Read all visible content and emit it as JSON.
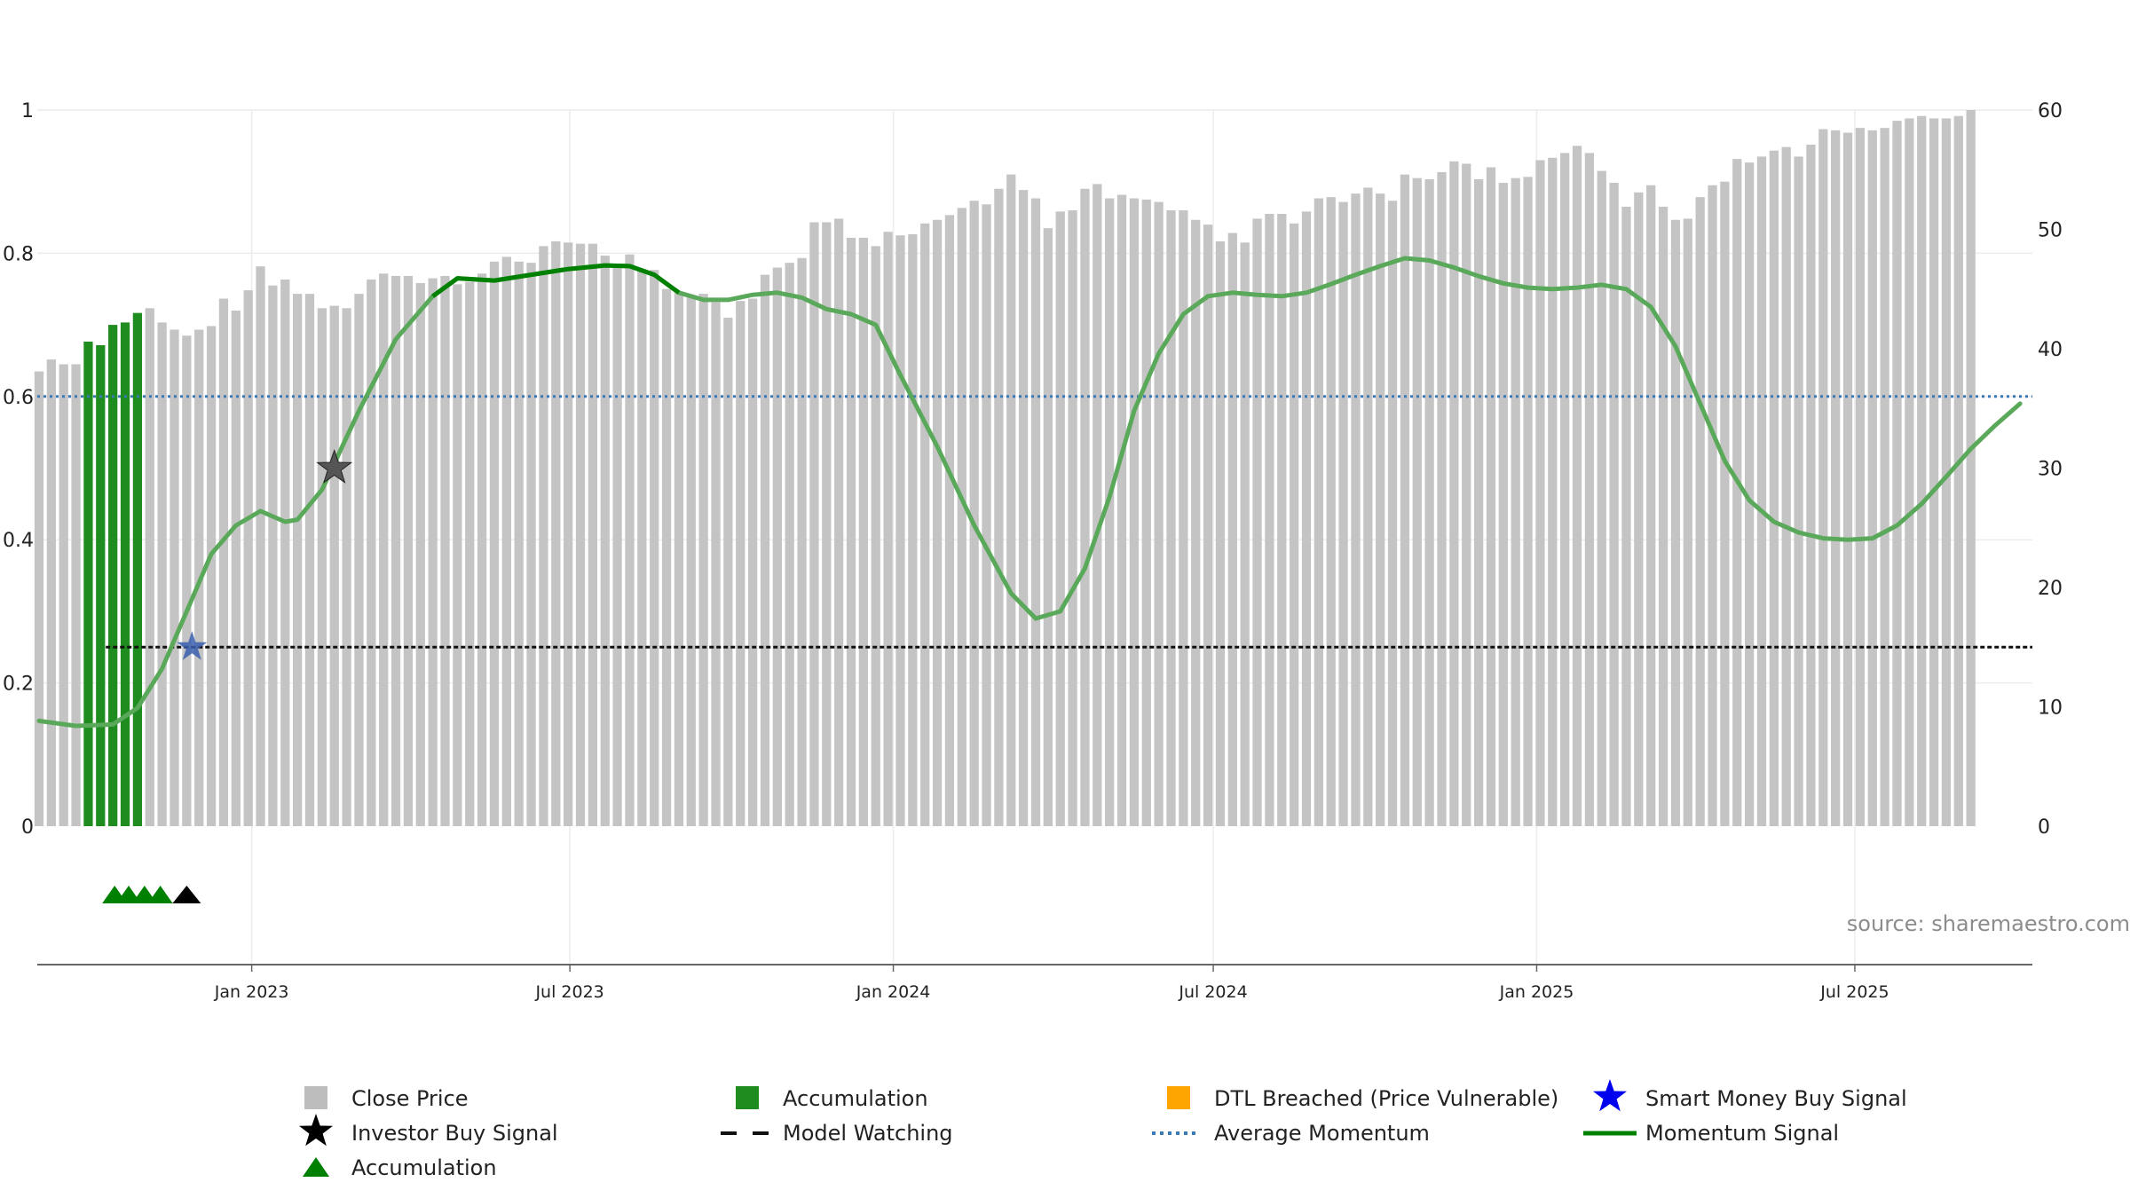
{
  "chart_data": {
    "type": "bar",
    "source_label": "source: sharemaestro.com",
    "left_axis": {
      "range": [
        0,
        1
      ],
      "ticks": [
        "0",
        "0.2",
        "0.4",
        "0.6",
        "0.8",
        "1"
      ],
      "tick_values": [
        0,
        0.2,
        0.4,
        0.6,
        0.8,
        1
      ]
    },
    "right_axis": {
      "range": [
        0,
        60
      ],
      "ticks": [
        "0",
        "10",
        "20",
        "30",
        "40",
        "50",
        "60"
      ],
      "tick_values": [
        0,
        10,
        20,
        30,
        40,
        50,
        60
      ]
    },
    "x_axis": {
      "start": "2022-09-01",
      "end": "2025-10-10",
      "ticks": [
        {
          "date": "2023-01-01",
          "label": "Jan 2023"
        },
        {
          "date": "2023-07-01",
          "label": "Jul 2023"
        },
        {
          "date": "2024-01-01",
          "label": "Jan 2024"
        },
        {
          "date": "2024-07-01",
          "label": "Jul 2024"
        },
        {
          "date": "2025-01-01",
          "label": "Jan 2025"
        },
        {
          "date": "2025-07-01",
          "label": "Jul 2025"
        }
      ]
    },
    "close_price": {
      "name": "Close Price",
      "first_date": "2022-09-02",
      "interval_days": 7,
      "accumulation_indices": [
        4,
        5,
        6,
        7,
        8
      ],
      "values": [
        38.1,
        39.1,
        38.7,
        38.7,
        40.6,
        40.3,
        42.0,
        42.2,
        43.0,
        43.4,
        42.2,
        41.6,
        41.1,
        41.6,
        41.9,
        44.2,
        43.2,
        44.9,
        46.9,
        45.3,
        45.8,
        44.6,
        44.6,
        43.4,
        43.6,
        43.4,
        44.6,
        45.8,
        46.3,
        46.1,
        46.1,
        45.5,
        45.9,
        46.1,
        45.4,
        45.6,
        46.3,
        47.3,
        47.7,
        47.3,
        47.2,
        48.6,
        49.0,
        48.9,
        48.8,
        48.8,
        47.8,
        46.8,
        47.9,
        46.6,
        46.6,
        45.0,
        44.7,
        44.3,
        44.6,
        43.9,
        42.6,
        44.0,
        44.2,
        46.2,
        46.8,
        47.2,
        47.6,
        50.6,
        50.6,
        50.9,
        49.3,
        49.3,
        48.6,
        49.8,
        49.5,
        49.6,
        50.5,
        50.8,
        51.2,
        51.8,
        52.4,
        52.1,
        53.4,
        54.6,
        53.3,
        52.6,
        50.1,
        51.5,
        51.6,
        53.4,
        53.8,
        52.6,
        52.9,
        52.6,
        52.5,
        52.3,
        51.6,
        51.6,
        50.8,
        50.4,
        49.0,
        49.7,
        48.9,
        50.9,
        51.3,
        51.3,
        50.5,
        51.5,
        52.6,
        52.7,
        52.3,
        53.0,
        53.5,
        53.0,
        52.4,
        54.6,
        54.3,
        54.2,
        54.8,
        55.7,
        55.5,
        54.2,
        55.2,
        53.9,
        54.3,
        54.4,
        55.8,
        56.0,
        56.4,
        57.0,
        56.4,
        54.9,
        53.9,
        51.9,
        53.1,
        53.7,
        51.9,
        50.8,
        50.9,
        52.7,
        53.7,
        54.0,
        55.9,
        55.6,
        56.1,
        56.6,
        56.9,
        56.1,
        57.1,
        58.4,
        58.3,
        58.1,
        58.5,
        58.3,
        58.5,
        59.1,
        59.3,
        59.5,
        59.3,
        59.3,
        59.5,
        60.0
      ]
    },
    "momentum_signal": {
      "name": "Momentum Signal",
      "color_solid": "#008000",
      "points": [
        [
          "2022-09-02",
          0.147
        ],
        [
          "2022-09-23",
          0.14
        ],
        [
          "2022-10-14",
          0.142
        ],
        [
          "2022-10-28",
          0.165
        ],
        [
          "2022-11-11",
          0.22
        ],
        [
          "2022-11-25",
          0.3
        ],
        [
          "2022-12-09",
          0.38
        ],
        [
          "2022-12-23",
          0.42
        ],
        [
          "2023-01-06",
          0.44
        ],
        [
          "2023-01-20",
          0.425
        ],
        [
          "2023-01-27",
          0.428
        ],
        [
          "2023-02-10",
          0.47
        ],
        [
          "2023-03-03",
          0.58
        ],
        [
          "2023-03-24",
          0.68
        ],
        [
          "2023-04-14",
          0.74
        ],
        [
          "2023-04-28",
          0.765
        ],
        [
          "2023-05-19",
          0.762
        ],
        [
          "2023-06-09",
          0.77
        ],
        [
          "2023-06-30",
          0.778
        ],
        [
          "2023-07-21",
          0.783
        ],
        [
          "2023-08-04",
          0.782
        ],
        [
          "2023-08-18",
          0.77
        ],
        [
          "2023-09-01",
          0.745
        ],
        [
          "2023-09-15",
          0.735
        ],
        [
          "2023-09-29",
          0.735
        ],
        [
          "2023-10-13",
          0.742
        ],
        [
          "2023-10-27",
          0.745
        ],
        [
          "2023-11-10",
          0.738
        ],
        [
          "2023-11-24",
          0.722
        ],
        [
          "2023-12-08",
          0.715
        ],
        [
          "2023-12-22",
          0.7
        ],
        [
          "2024-01-05",
          0.63
        ],
        [
          "2024-01-26",
          0.53
        ],
        [
          "2024-02-16",
          0.42
        ],
        [
          "2024-03-08",
          0.325
        ],
        [
          "2024-03-22",
          0.29
        ],
        [
          "2024-04-05",
          0.3
        ],
        [
          "2024-04-19",
          0.36
        ],
        [
          "2024-05-03",
          0.46
        ],
        [
          "2024-05-17",
          0.58
        ],
        [
          "2024-05-31",
          0.66
        ],
        [
          "2024-06-14",
          0.715
        ],
        [
          "2024-06-28",
          0.74
        ],
        [
          "2024-07-12",
          0.745
        ],
        [
          "2024-07-26",
          0.742
        ],
        [
          "2024-08-09",
          0.74
        ],
        [
          "2024-08-23",
          0.745
        ],
        [
          "2024-09-06",
          0.757
        ],
        [
          "2024-09-20",
          0.77
        ],
        [
          "2024-10-04",
          0.782
        ],
        [
          "2024-10-18",
          0.793
        ],
        [
          "2024-11-01",
          0.79
        ],
        [
          "2024-11-15",
          0.78
        ],
        [
          "2024-11-29",
          0.768
        ],
        [
          "2024-12-13",
          0.758
        ],
        [
          "2024-12-27",
          0.752
        ],
        [
          "2025-01-10",
          0.75
        ],
        [
          "2025-01-24",
          0.752
        ],
        [
          "2025-02-07",
          0.756
        ],
        [
          "2025-02-21",
          0.75
        ],
        [
          "2025-03-07",
          0.725
        ],
        [
          "2025-03-21",
          0.67
        ],
        [
          "2025-04-04",
          0.59
        ],
        [
          "2025-04-18",
          0.51
        ],
        [
          "2025-05-02",
          0.455
        ],
        [
          "2025-05-16",
          0.425
        ],
        [
          "2025-05-30",
          0.41
        ],
        [
          "2025-06-13",
          0.402
        ],
        [
          "2025-06-27",
          0.4
        ],
        [
          "2025-07-11",
          0.402
        ],
        [
          "2025-07-25",
          0.42
        ],
        [
          "2025-08-08",
          0.45
        ],
        [
          "2025-08-22",
          0.488
        ],
        [
          "2025-09-05",
          0.527
        ],
        [
          "2025-09-19",
          0.56
        ],
        [
          "2025-10-03",
          0.59
        ]
      ]
    },
    "model_watching": {
      "name": "Model Watching",
      "value": 0.25,
      "start": "2022-10-10",
      "end": "2025-10-10"
    },
    "average_momentum": {
      "name": "Average Momentum",
      "value": 0.6
    },
    "markers": {
      "investor_buy_signal": {
        "name": "Investor Buy Signal",
        "date": "2023-02-17",
        "value": 0.5
      },
      "smart_money_buy_signal": {
        "name": "Smart Money Buy Signal",
        "date": "2022-11-28",
        "value": 0.25
      },
      "accumulation_triangles": [
        "2022-10-15",
        "2022-10-23",
        "2022-11-01",
        "2022-11-10"
      ],
      "black_triangle": "2022-11-25"
    },
    "legend": [
      {
        "label": "Close Price",
        "symbol": "square-gray"
      },
      {
        "label": "Accumulation",
        "symbol": "square-green"
      },
      {
        "label": "DTL Breached (Price Vulnerable)",
        "symbol": "square-orange"
      },
      {
        "label": "Smart Money Buy Signal",
        "symbol": "star-blue"
      },
      {
        "label": "Investor Buy Signal",
        "symbol": "star-black"
      },
      {
        "label": "Model Watching",
        "symbol": "dash-black"
      },
      {
        "label": "Average Momentum",
        "symbol": "dot-blue"
      },
      {
        "label": "Momentum Signal",
        "symbol": "line-green"
      },
      {
        "label": "Accumulation",
        "symbol": "triangle-green"
      }
    ],
    "colors": {
      "close_price": "#c4c4c4",
      "accumulation": "#1e8c1e",
      "dtl_breached": "#ffa500",
      "smart_money": "#0000ee",
      "investor": "#000000",
      "average_momentum": "#3a7ab8",
      "momentum": "#008000"
    }
  }
}
